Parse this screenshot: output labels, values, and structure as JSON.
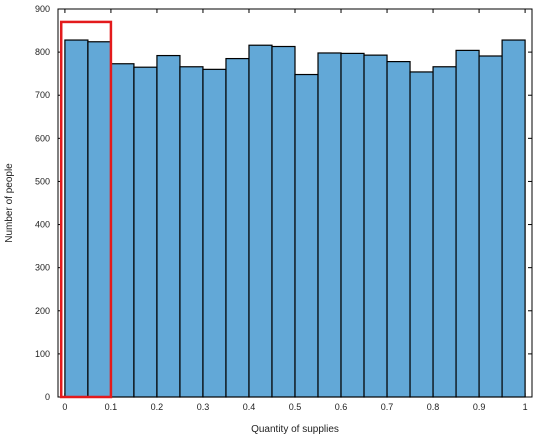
{
  "chart_data": {
    "type": "bar",
    "title": "",
    "xlabel": "Quantity of supplies",
    "ylabel": "Number of people",
    "xlim": [
      -0.015,
      1.015
    ],
    "ylim": [
      0,
      900
    ],
    "bin_width": 0.05,
    "bins": [
      0.0,
      0.05,
      0.1,
      0.15,
      0.2,
      0.25,
      0.3,
      0.35,
      0.4,
      0.45,
      0.5,
      0.55,
      0.6,
      0.65,
      0.7,
      0.75,
      0.8,
      0.85,
      0.9,
      0.95
    ],
    "values": [
      828,
      824,
      773,
      765,
      792,
      766,
      760,
      785,
      816,
      813,
      748,
      798,
      797,
      793,
      778,
      754,
      766,
      804,
      791,
      828
    ],
    "x_ticks": [
      "0",
      "0.1",
      "0.2",
      "0.3",
      "0.4",
      "0.5",
      "0.6",
      "0.7",
      "0.8",
      "0.9",
      "1"
    ],
    "x_tick_values": [
      0,
      0.1,
      0.2,
      0.3,
      0.4,
      0.5,
      0.6,
      0.7,
      0.8,
      0.9,
      1
    ],
    "y_ticks": [
      "0",
      "100",
      "200",
      "300",
      "400",
      "500",
      "600",
      "700",
      "800",
      "900"
    ],
    "y_tick_values": [
      0,
      100,
      200,
      300,
      400,
      500,
      600,
      700,
      800,
      900
    ],
    "grid": false,
    "highlight": {
      "x_range": [
        -0.008,
        0.1
      ],
      "y_range": [
        0,
        870
      ]
    },
    "colors": {
      "bar_fill": "#62a8d7",
      "bar_edge": "#000000",
      "highlight": "#e31a1c"
    }
  }
}
